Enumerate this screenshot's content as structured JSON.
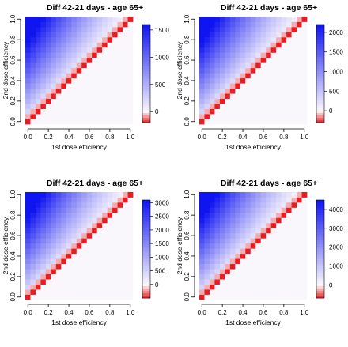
{
  "chart_data": [
    {
      "type": "heatmap",
      "title": "Diff 42-21 days - age 65+",
      "xlabel": "1st dose efficiency",
      "ylabel": "2nd dose efficiency",
      "x_ticks": [
        "0.0",
        "0.2",
        "0.4",
        "0.6",
        "0.8",
        "1.0"
      ],
      "y_ticks": [
        "0.0",
        "0.2",
        "0.4",
        "0.6",
        "0.8",
        "1.0"
      ],
      "grid_steps": 21,
      "value_range": [
        -200,
        1600
      ],
      "colorbar_ticks": [
        0,
        500,
        1000,
        1500
      ],
      "colorbar_tick_labels": [
        "0",
        "500",
        "1000",
        "1500"
      ],
      "diagonal_value": -200,
      "below_diagonal_value": 0
    },
    {
      "type": "heatmap",
      "title": "Diff 42-21 days - age 65+",
      "xlabel": "1st dose efficiency",
      "ylabel": "2nd dose efficiency",
      "x_ticks": [
        "0.0",
        "0.2",
        "0.4",
        "0.6",
        "0.8",
        "1.0"
      ],
      "y_ticks": [
        "0.0",
        "0.2",
        "0.4",
        "0.6",
        "0.8",
        "1.0"
      ],
      "grid_steps": 21,
      "value_range": [
        -300,
        2200
      ],
      "colorbar_ticks": [
        0,
        500,
        1000,
        1500,
        2000
      ],
      "colorbar_tick_labels": [
        "0",
        "500",
        "1000",
        "1500",
        "2000"
      ],
      "diagonal_value": -300,
      "below_diagonal_value": 0
    },
    {
      "type": "heatmap",
      "title": "Diff 42-21 days - age 65+",
      "xlabel": "1st dose efficiency",
      "ylabel": "2nd dose efficiency",
      "x_ticks": [
        "0.0",
        "0.2",
        "0.4",
        "0.6",
        "0.8",
        "1.0"
      ],
      "y_ticks": [
        "0.0",
        "0.2",
        "0.4",
        "0.6",
        "0.8",
        "1.0"
      ],
      "grid_steps": 21,
      "value_range": [
        -500,
        3100
      ],
      "colorbar_ticks": [
        0,
        500,
        1000,
        1500,
        2000,
        2500,
        3000
      ],
      "colorbar_tick_labels": [
        "0",
        "500",
        "1000",
        "1500",
        "2000",
        "2500",
        "3000"
      ],
      "diagonal_value": -500,
      "below_diagonal_value": 0
    },
    {
      "type": "heatmap",
      "title": "Diff 42-21 days - age 65+",
      "xlabel": "1st dose efficiency",
      "ylabel": "2nd dose efficiency",
      "x_ticks": [
        "0.0",
        "0.2",
        "0.4",
        "0.6",
        "0.8",
        "1.0"
      ],
      "y_ticks": [
        "0.0",
        "0.2",
        "0.4",
        "0.6",
        "0.8",
        "1.0"
      ],
      "grid_steps": 21,
      "value_range": [
        -700,
        4500
      ],
      "colorbar_ticks": [
        0,
        1000,
        2000,
        3000,
        4000
      ],
      "colorbar_tick_labels": [
        "0",
        "1000",
        "2000",
        "3000",
        "4000"
      ],
      "diagonal_value": -700,
      "below_diagonal_value": 0
    }
  ]
}
